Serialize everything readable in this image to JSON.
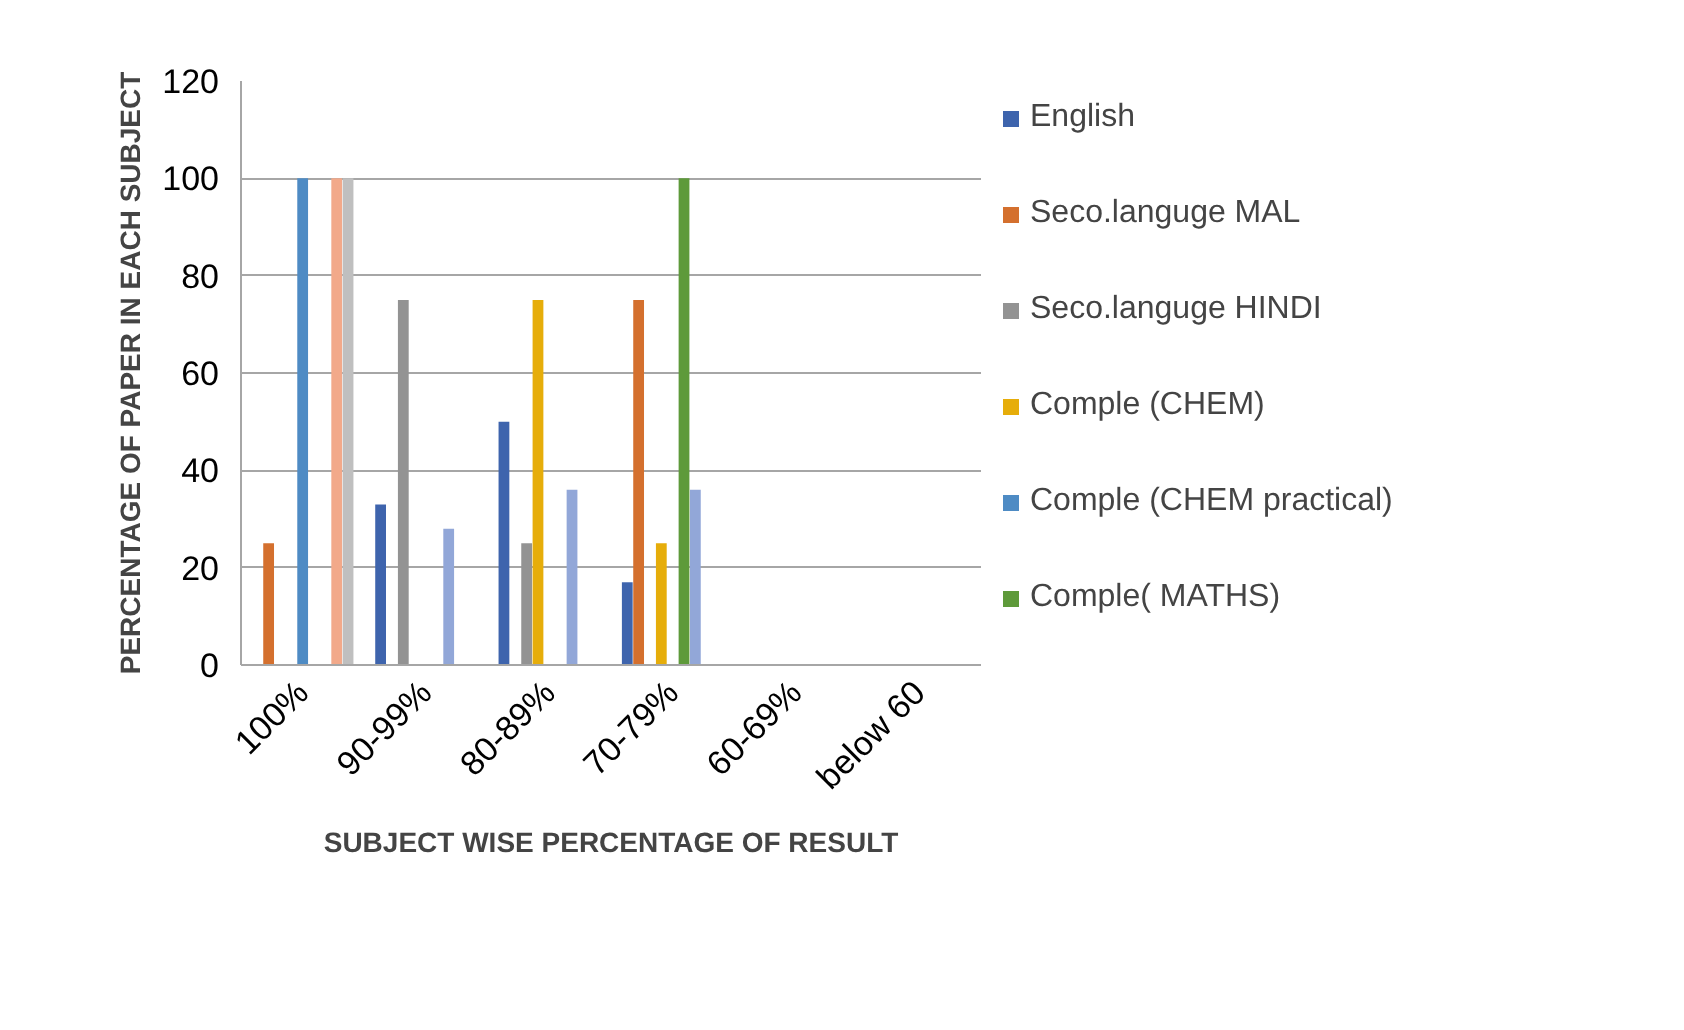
{
  "chart_data": {
    "type": "bar",
    "xlabel": "SUBJECT WISE PERCENTAGE OF RESULT",
    "ylabel": "PERCENTAGE OF PAPER IN EACH SUBJECT",
    "categories": [
      "100%",
      "90-99%",
      "80-89%",
      "70-79%",
      "60-69%",
      "below 60"
    ],
    "series": [
      {
        "name": "English",
        "color": "#3e64ad",
        "values": [
          null,
          33,
          50,
          17,
          null,
          null
        ]
      },
      {
        "name": "Seco.languge MAL",
        "color": "#d4702e",
        "values": [
          25,
          null,
          null,
          75,
          null,
          null
        ]
      },
      {
        "name": "Seco.languge HINDI",
        "color": "#939393",
        "values": [
          null,
          75,
          25,
          null,
          null,
          null
        ]
      },
      {
        "name": "Comple (CHEM)",
        "color": "#e6ad0a",
        "values": [
          null,
          null,
          75,
          25,
          null,
          null
        ]
      },
      {
        "name": "Comple (CHEM practical)",
        "color": "#4e8bc4",
        "values": [
          100,
          null,
          null,
          null,
          null,
          null
        ]
      },
      {
        "name": "Comple( MATHS)",
        "color": "#5e9a3a",
        "values": [
          null,
          null,
          null,
          100,
          null,
          null
        ]
      },
      {
        "color": "#92a7d8",
        "values": [
          null,
          28,
          36,
          36,
          null,
          null
        ]
      },
      {
        "color": "#f2a98a",
        "values": [
          100,
          null,
          null,
          null,
          null,
          null
        ]
      },
      {
        "color": "#bfbfbf",
        "values": [
          100,
          null,
          null,
          null,
          null,
          null
        ]
      }
    ],
    "ylim": [
      0,
      120
    ],
    "yticks": [
      0,
      20,
      40,
      60,
      80,
      100,
      120
    ],
    "grid": "y",
    "legend": "right"
  }
}
